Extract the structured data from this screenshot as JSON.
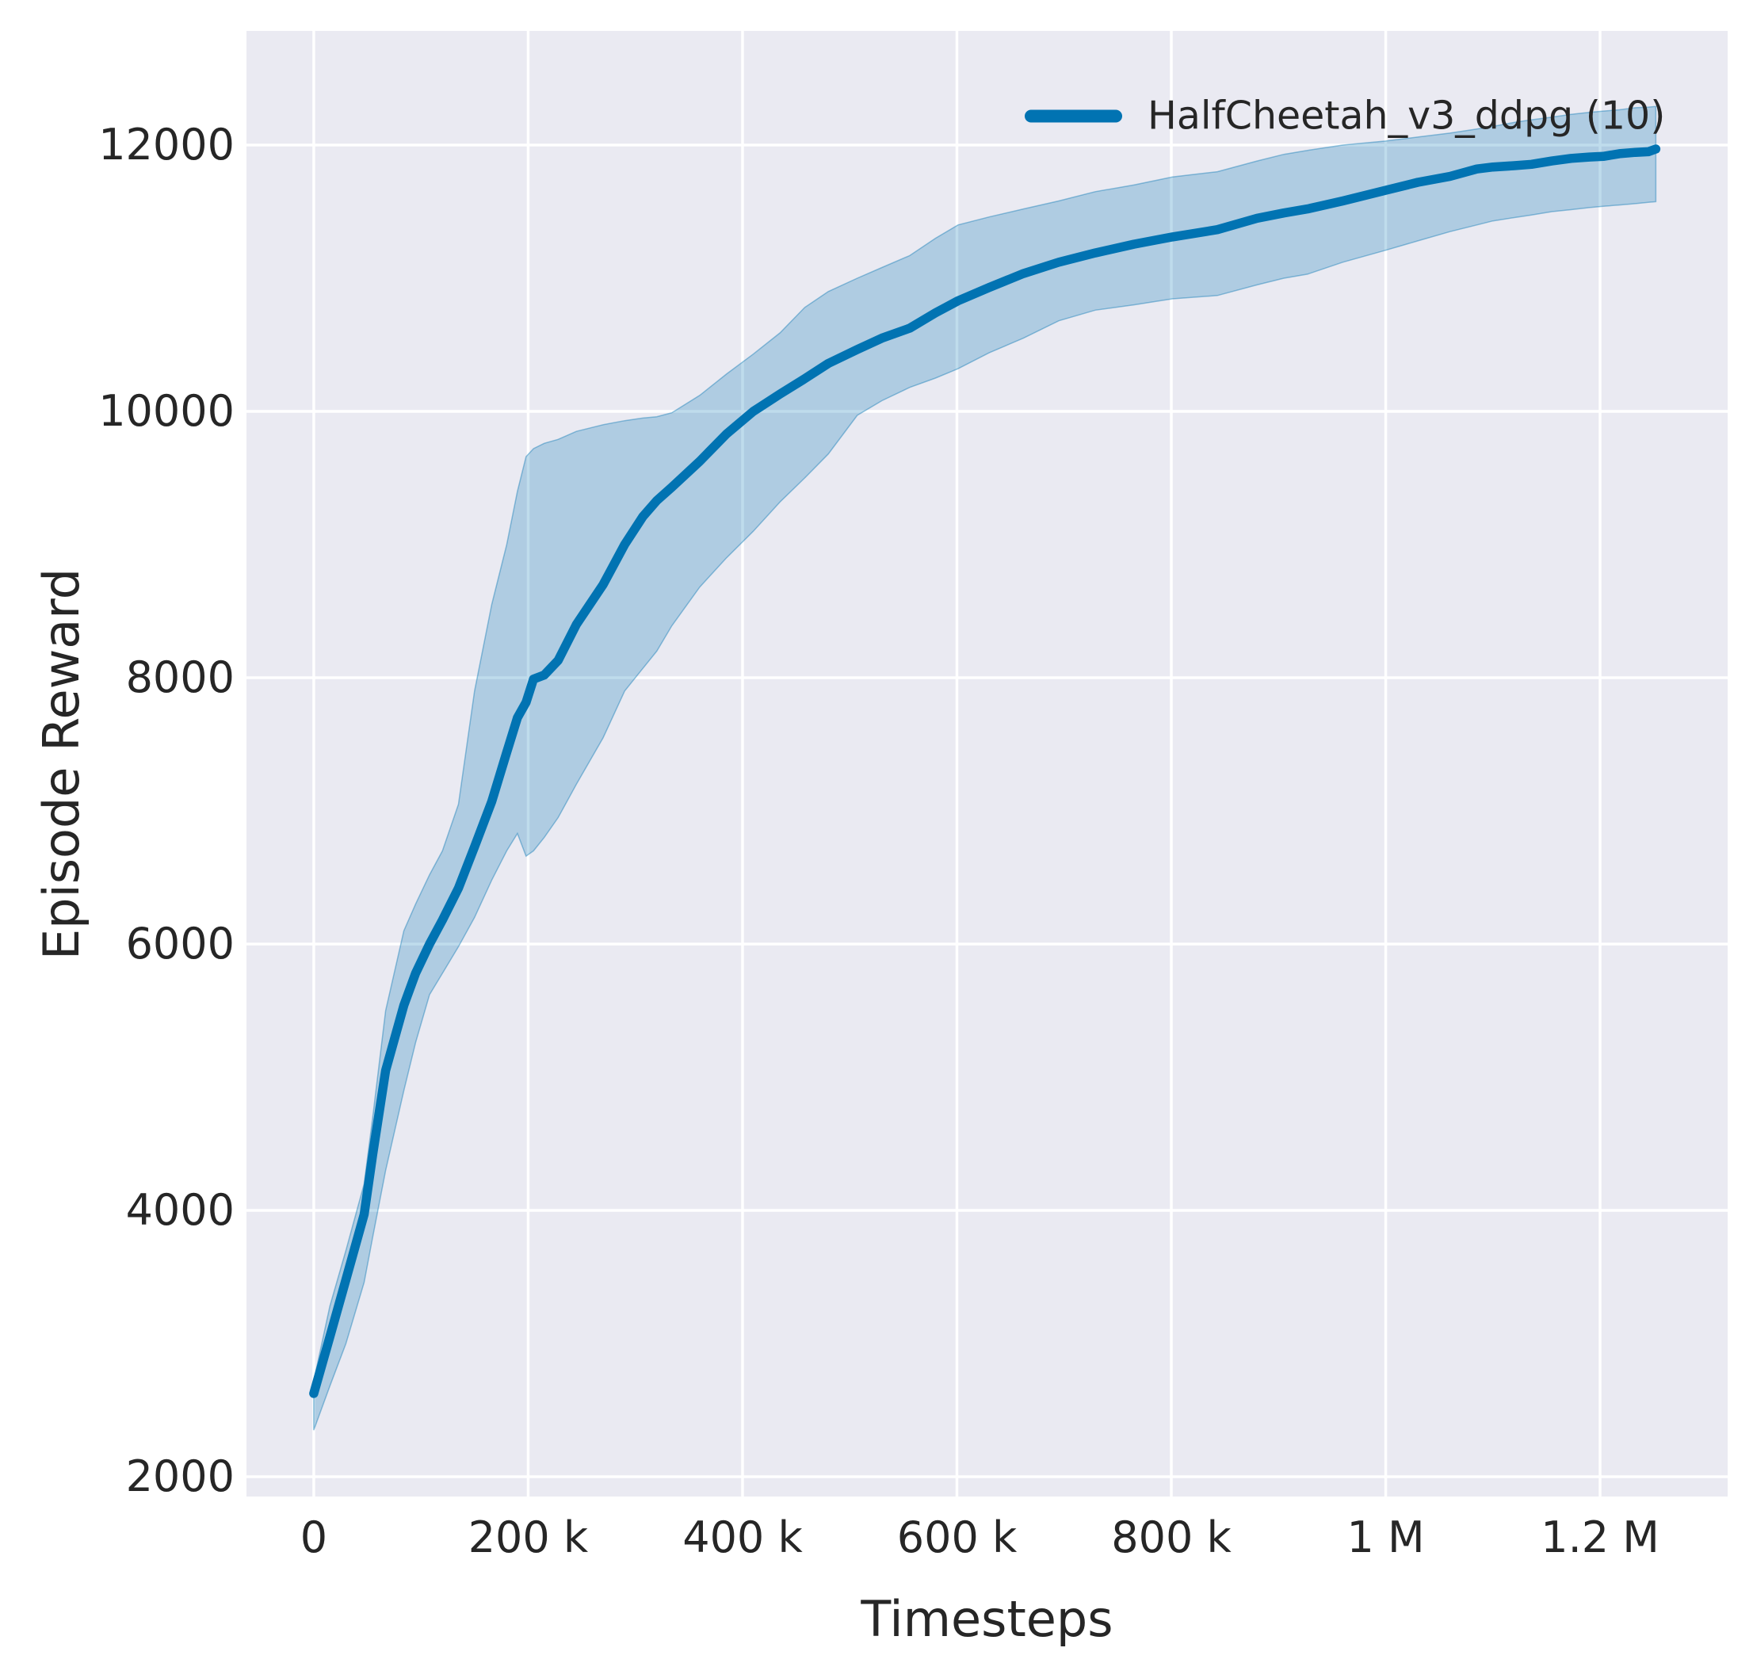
{
  "figure": {
    "background": "#ffffff",
    "axes_background": "#eaeaf2",
    "grid_color": "#ffffff",
    "text_color": "#262626"
  },
  "axis_labels": {
    "x": "Timesteps",
    "y": "Episode Reward"
  },
  "legend": {
    "entries": [
      {
        "label": "HalfCheetah_v3_ddpg (10)",
        "color": "#0173b2"
      }
    ]
  },
  "chart_data": {
    "type": "line",
    "title": "",
    "xlabel": "Timesteps",
    "ylabel": "Episode Reward",
    "grid": true,
    "legend_position": "upper right",
    "xlim": [
      -62800,
      1319000
    ],
    "ylim": [
      1851,
      12857
    ],
    "x_ticks": {
      "values": [
        0,
        200000,
        400000,
        600000,
        800000,
        1000000,
        1200000
      ],
      "labels": [
        "0",
        "200 k",
        "400 k",
        "600 k",
        "800 k",
        "1 M",
        "1.2 M"
      ]
    },
    "y_ticks": {
      "values": [
        2000,
        4000,
        6000,
        8000,
        10000,
        12000
      ],
      "labels": [
        "2000",
        "4000",
        "6000",
        "8000",
        "10000",
        "12000"
      ]
    },
    "series": [
      {
        "name": "HalfCheetah_v3_ddpg (10)",
        "color": "#0173b2",
        "band_alpha": 0.25,
        "x": [
          0,
          15000,
          30000,
          47000,
          55000,
          67000,
          84000,
          95000,
          108000,
          120000,
          135000,
          150000,
          166000,
          180000,
          190000,
          198000,
          205000,
          215000,
          228000,
          245000,
          270000,
          290000,
          307000,
          320000,
          334000,
          360000,
          385000,
          410000,
          435000,
          458000,
          480000,
          507000,
          530000,
          556000,
          580000,
          601000,
          630000,
          662000,
          695000,
          729000,
          765000,
          801000,
          843000,
          880000,
          905000,
          927000,
          960000,
          1000000,
          1030000,
          1060000,
          1085000,
          1100000,
          1120000,
          1136000,
          1155000,
          1173000,
          1190000,
          1203000,
          1218000,
          1233000,
          1245000,
          1252000
        ],
        "y": [
          2625,
          3050,
          3480,
          3970,
          4420,
          5050,
          5540,
          5780,
          6000,
          6180,
          6420,
          6730,
          7070,
          7440,
          7700,
          7815,
          7990,
          8020,
          8130,
          8400,
          8700,
          9000,
          9210,
          9330,
          9430,
          9625,
          9830,
          10000,
          10130,
          10245,
          10360,
          10465,
          10550,
          10625,
          10740,
          10830,
          10930,
          11035,
          11120,
          11190,
          11255,
          11310,
          11365,
          11450,
          11490,
          11520,
          11580,
          11660,
          11720,
          11765,
          11820,
          11835,
          11845,
          11855,
          11880,
          11900,
          11910,
          11915,
          11935,
          11945,
          11950,
          11970
        ],
        "band_lower": [
          2350,
          2680,
          3000,
          3460,
          3800,
          4300,
          4900,
          5260,
          5620,
          5780,
          5980,
          6200,
          6480,
          6700,
          6830,
          6660,
          6700,
          6800,
          6950,
          7200,
          7550,
          7900,
          8070,
          8200,
          8390,
          8680,
          8900,
          9100,
          9320,
          9500,
          9680,
          9970,
          10080,
          10180,
          10250,
          10320,
          10440,
          10550,
          10680,
          10760,
          10800,
          10845,
          10870,
          10950,
          11000,
          11030,
          11120,
          11210,
          11280,
          11350,
          11400,
          11430,
          11455,
          11475,
          11500,
          11515,
          11530,
          11540,
          11550,
          11560,
          11570,
          11575
        ],
        "band_upper": [
          2720,
          3280,
          3700,
          4200,
          4700,
          5500,
          6100,
          6300,
          6520,
          6700,
          7050,
          7900,
          8550,
          9000,
          9400,
          9660,
          9720,
          9760,
          9790,
          9850,
          9900,
          9930,
          9950,
          9960,
          9990,
          10120,
          10280,
          10430,
          10590,
          10780,
          10900,
          11000,
          11080,
          11170,
          11300,
          11400,
          11460,
          11520,
          11580,
          11650,
          11700,
          11760,
          11800,
          11880,
          11930,
          11960,
          12000,
          12030,
          12060,
          12090,
          12120,
          12140,
          12170,
          12190,
          12210,
          12230,
          12245,
          12255,
          12265,
          12280,
          12285,
          12290
        ]
      }
    ]
  }
}
